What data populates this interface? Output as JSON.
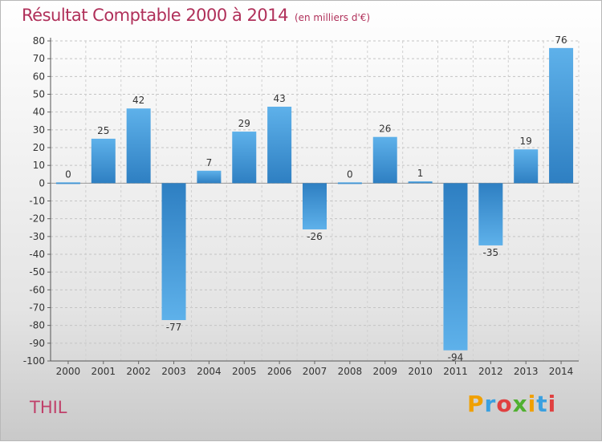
{
  "title": "Résultat Comptable 2000 à 2014",
  "unit": "(en milliers d'€)",
  "commune": "THIL",
  "logo": {
    "letters": [
      "P",
      "r",
      "o",
      "x",
      "i",
      "t",
      "i"
    ],
    "colors": [
      "#f0a000",
      "#3aa0e0",
      "#e04040",
      "#50b030",
      "#f0a000",
      "#3aa0e0",
      "#e04040"
    ]
  },
  "chart_data": {
    "type": "bar",
    "categories": [
      "2000",
      "2001",
      "2002",
      "2003",
      "2004",
      "2005",
      "2006",
      "2007",
      "2008",
      "2009",
      "2010",
      "2011",
      "2012",
      "2013",
      "2014"
    ],
    "values": [
      0,
      25,
      42,
      -77,
      7,
      29,
      43,
      -26,
      0,
      26,
      1,
      -94,
      -35,
      19,
      76
    ],
    "ylim": [
      -100,
      80
    ],
    "yticks": [
      80,
      70,
      60,
      50,
      40,
      30,
      20,
      10,
      0,
      -10,
      -20,
      -30,
      -40,
      -50,
      -60,
      -70,
      -80,
      -90,
      -100
    ],
    "grid": true,
    "colors": {
      "bar_dark": "#2e7fc2",
      "bar_light": "#5eb1ea"
    }
  }
}
